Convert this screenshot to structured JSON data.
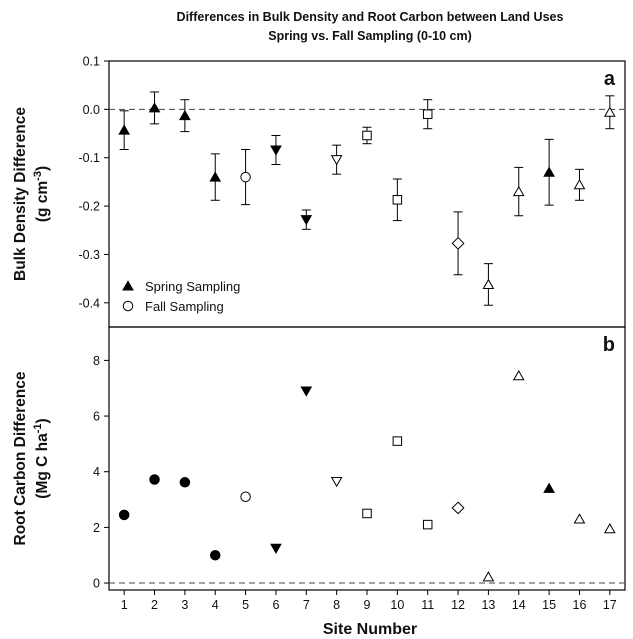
{
  "title_line1": "Differences in Bulk Density and Root Carbon between Land Uses",
  "title_line2": "Spring vs. Fall Sampling (0-10 cm)",
  "x_axis_label": "Site Number",
  "chart_data": [
    {
      "panel": "a",
      "type": "scatter",
      "ylabel_line1": "Bulk Density Difference",
      "ylabel_line2_prefix": "(g cm",
      "ylabel_line2_sup": "-3",
      "ylabel_line2_suffix": ")",
      "ylim": [
        -0.45,
        0.1
      ],
      "yticks": [
        0.1,
        0.0,
        -0.1,
        -0.2,
        -0.3,
        -0.4
      ],
      "ytick_labels": [
        "0.1",
        "0.0",
        "-0.1",
        "-0.2",
        "-0.3",
        "-0.4"
      ],
      "xlim": [
        0.5,
        17.5
      ],
      "zero_line": true,
      "legend": {
        "location": "lower-left",
        "entries": [
          {
            "marker": "triangle-up",
            "fill": "#000000",
            "label": "Spring Sampling"
          },
          {
            "marker": "circle",
            "fill": "#ffffff",
            "label": "Fall Sampling"
          }
        ]
      },
      "points": [
        {
          "site": 1,
          "y": -0.043,
          "err": 0.04,
          "marker": "triangle-up",
          "filled": true
        },
        {
          "site": 2,
          "y": 0.003,
          "err": 0.033,
          "marker": "triangle-up",
          "filled": true
        },
        {
          "site": 3,
          "y": -0.013,
          "err": 0.033,
          "marker": "triangle-up",
          "filled": true
        },
        {
          "site": 4,
          "y": -0.14,
          "err": 0.048,
          "marker": "triangle-up",
          "filled": true
        },
        {
          "site": 5,
          "y": -0.14,
          "err": 0.057,
          "marker": "circle",
          "filled": false
        },
        {
          "site": 6,
          "y": -0.084,
          "err": 0.03,
          "marker": "triangle-down",
          "filled": true
        },
        {
          "site": 7,
          "y": -0.228,
          "err": 0.02,
          "marker": "triangle-down",
          "filled": true
        },
        {
          "site": 8,
          "y": -0.104,
          "err": 0.03,
          "marker": "triangle-down",
          "filled": false
        },
        {
          "site": 9,
          "y": -0.054,
          "err": 0.017,
          "marker": "square",
          "filled": false
        },
        {
          "site": 10,
          "y": -0.187,
          "err": 0.043,
          "marker": "square",
          "filled": false
        },
        {
          "site": 11,
          "y": -0.01,
          "err": 0.03,
          "marker": "square",
          "filled": false
        },
        {
          "site": 12,
          "y": -0.277,
          "err": 0.065,
          "marker": "diamond",
          "filled": false
        },
        {
          "site": 13,
          "y": -0.362,
          "err": 0.043,
          "marker": "triangle-up",
          "filled": false
        },
        {
          "site": 14,
          "y": -0.17,
          "err": 0.05,
          "marker": "triangle-up",
          "filled": false
        },
        {
          "site": 15,
          "y": -0.13,
          "err": 0.068,
          "marker": "triangle-up",
          "filled": true
        },
        {
          "site": 16,
          "y": -0.156,
          "err": 0.032,
          "marker": "triangle-up",
          "filled": false
        },
        {
          "site": 17,
          "y": -0.006,
          "err": 0.034,
          "marker": "triangle-up",
          "filled": false
        }
      ]
    },
    {
      "panel": "b",
      "type": "scatter",
      "ylabel_line1": "Root Carbon Difference",
      "ylabel_line2_prefix": "(Mg C ha",
      "ylabel_line2_sup": "-1",
      "ylabel_line2_suffix": ")",
      "ylim": [
        -0.25,
        9.2
      ],
      "yticks": [
        0,
        2,
        4,
        6,
        8
      ],
      "ytick_labels": [
        "0",
        "2",
        "4",
        "6",
        "8"
      ],
      "xlim": [
        0.5,
        17.5
      ],
      "zero_line": true,
      "points": [
        {
          "site": 1,
          "y": 2.45,
          "marker": "circle",
          "filled": true
        },
        {
          "site": 2,
          "y": 3.72,
          "marker": "circle",
          "filled": true
        },
        {
          "site": 3,
          "y": 3.62,
          "marker": "circle",
          "filled": true
        },
        {
          "site": 4,
          "y": 1.0,
          "marker": "circle",
          "filled": true
        },
        {
          "site": 5,
          "y": 3.1,
          "marker": "circle",
          "filled": false
        },
        {
          "site": 6,
          "y": 1.25,
          "marker": "triangle-down",
          "filled": true
        },
        {
          "site": 7,
          "y": 6.9,
          "marker": "triangle-down",
          "filled": true
        },
        {
          "site": 8,
          "y": 3.65,
          "marker": "triangle-down",
          "filled": false
        },
        {
          "site": 9,
          "y": 2.5,
          "marker": "square",
          "filled": false
        },
        {
          "site": 10,
          "y": 5.1,
          "marker": "square",
          "filled": false
        },
        {
          "site": 11,
          "y": 2.1,
          "marker": "square",
          "filled": false
        },
        {
          "site": 12,
          "y": 2.7,
          "marker": "diamond",
          "filled": false
        },
        {
          "site": 13,
          "y": 0.22,
          "marker": "triangle-up",
          "filled": false
        },
        {
          "site": 14,
          "y": 7.45,
          "marker": "triangle-up",
          "filled": false
        },
        {
          "site": 15,
          "y": 3.4,
          "marker": "triangle-up",
          "filled": true
        },
        {
          "site": 16,
          "y": 2.3,
          "marker": "triangle-up",
          "filled": false
        },
        {
          "site": 17,
          "y": 1.95,
          "marker": "triangle-up",
          "filled": false
        }
      ]
    }
  ],
  "x_ticks": [
    1,
    2,
    3,
    4,
    5,
    6,
    7,
    8,
    9,
    10,
    11,
    12,
    13,
    14,
    15,
    16,
    17
  ]
}
